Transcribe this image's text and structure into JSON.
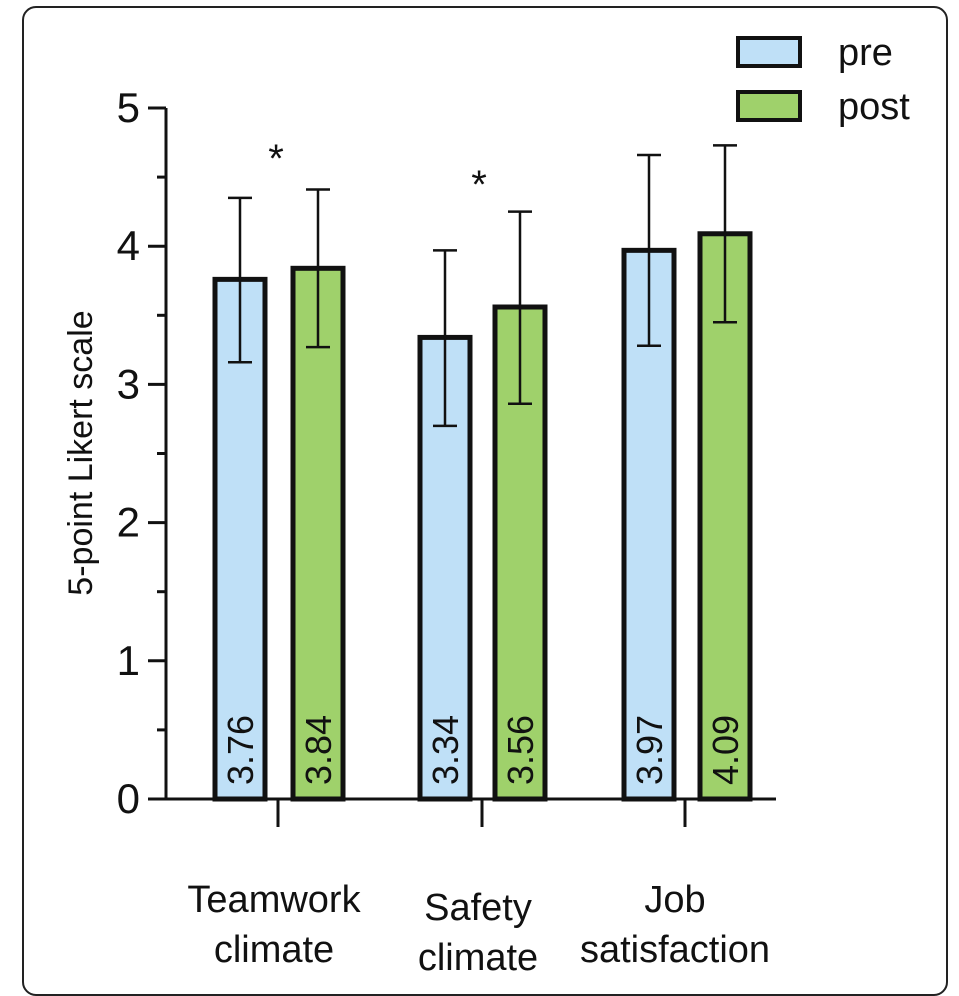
{
  "chart_data": {
    "type": "bar",
    "ylabel": "5-point Likert scale",
    "ylim": [
      0,
      5
    ],
    "yticks": [
      0,
      1,
      2,
      3,
      4,
      5
    ],
    "categories": [
      [
        "Teamwork",
        "climate"
      ],
      [
        "Safety",
        "climate"
      ],
      [
        "Job",
        "satisfaction"
      ]
    ],
    "series": [
      {
        "name": "pre",
        "color": "#bfe0f7",
        "values": [
          3.76,
          3.34,
          3.97
        ],
        "error_low": [
          3.16,
          2.7,
          3.28
        ],
        "error_high": [
          4.35,
          3.97,
          4.66
        ],
        "labels": [
          "3.76",
          "3.34",
          "3.97"
        ]
      },
      {
        "name": "post",
        "color": "#9fd16b",
        "values": [
          3.84,
          3.56,
          4.09
        ],
        "error_low": [
          3.27,
          2.86,
          3.45
        ],
        "error_high": [
          4.41,
          4.25,
          4.73
        ],
        "labels": [
          "3.84",
          "3.56",
          "4.09"
        ]
      }
    ],
    "annotations": [
      {
        "text": "*",
        "category_index": 0
      },
      {
        "text": "*",
        "category_index": 1
      }
    ],
    "legend_position": "top-right",
    "grid": false
  }
}
